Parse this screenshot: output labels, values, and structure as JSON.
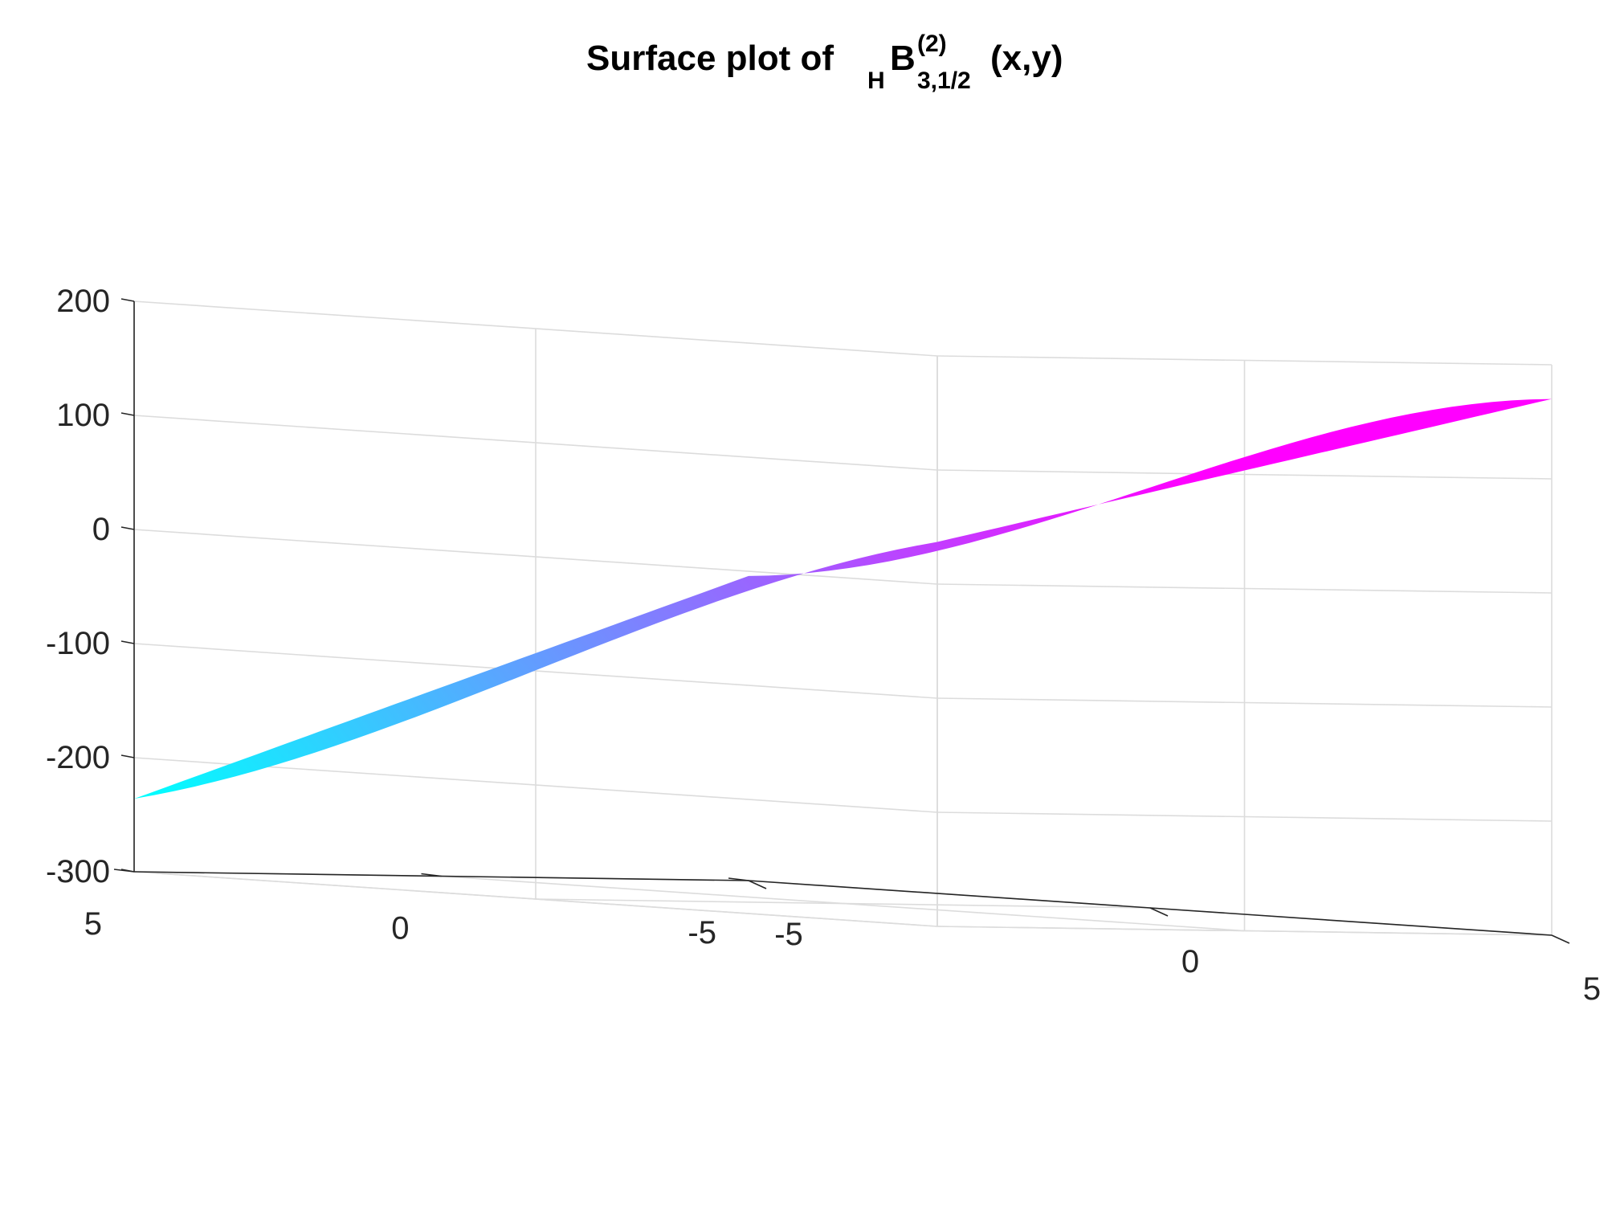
{
  "chart_data": {
    "type": "surface",
    "title": {
      "prefix": "Surface plot of ",
      "sub_left": "H",
      "base": "B",
      "superscript": "(2)",
      "subscript": "3,1/2",
      "suffix": "(x,y)"
    },
    "xlabel": "",
    "ylabel": "",
    "zlabel": "",
    "x_range": [
      -5,
      5
    ],
    "y_range": [
      -5,
      5
    ],
    "z_range": [
      -300,
      200
    ],
    "x_ticks": [
      -5,
      0,
      5
    ],
    "y_ticks": [
      -5,
      0,
      5
    ],
    "z_ticks": [
      -300,
      -200,
      -100,
      0,
      100,
      200
    ],
    "x_tick_labels": [
      "-5",
      "0",
      "5"
    ],
    "y_tick_labels": [
      "-5",
      "0",
      "5"
    ],
    "z_tick_labels": [
      "-300",
      "-200",
      "-100",
      "0",
      "100",
      "200"
    ],
    "grid": true,
    "colormap": [
      "#00ffff",
      "#ff00ff"
    ],
    "corner_values": [
      {
        "x": -5,
        "y": -5,
        "z": -33
      },
      {
        "x": 5,
        "y": -5,
        "z": 170
      },
      {
        "x": -5,
        "y": 5,
        "z": -236
      },
      {
        "x": 5,
        "y": 5,
        "z": 37
      }
    ],
    "z_min": -236,
    "z_max": 170
  }
}
